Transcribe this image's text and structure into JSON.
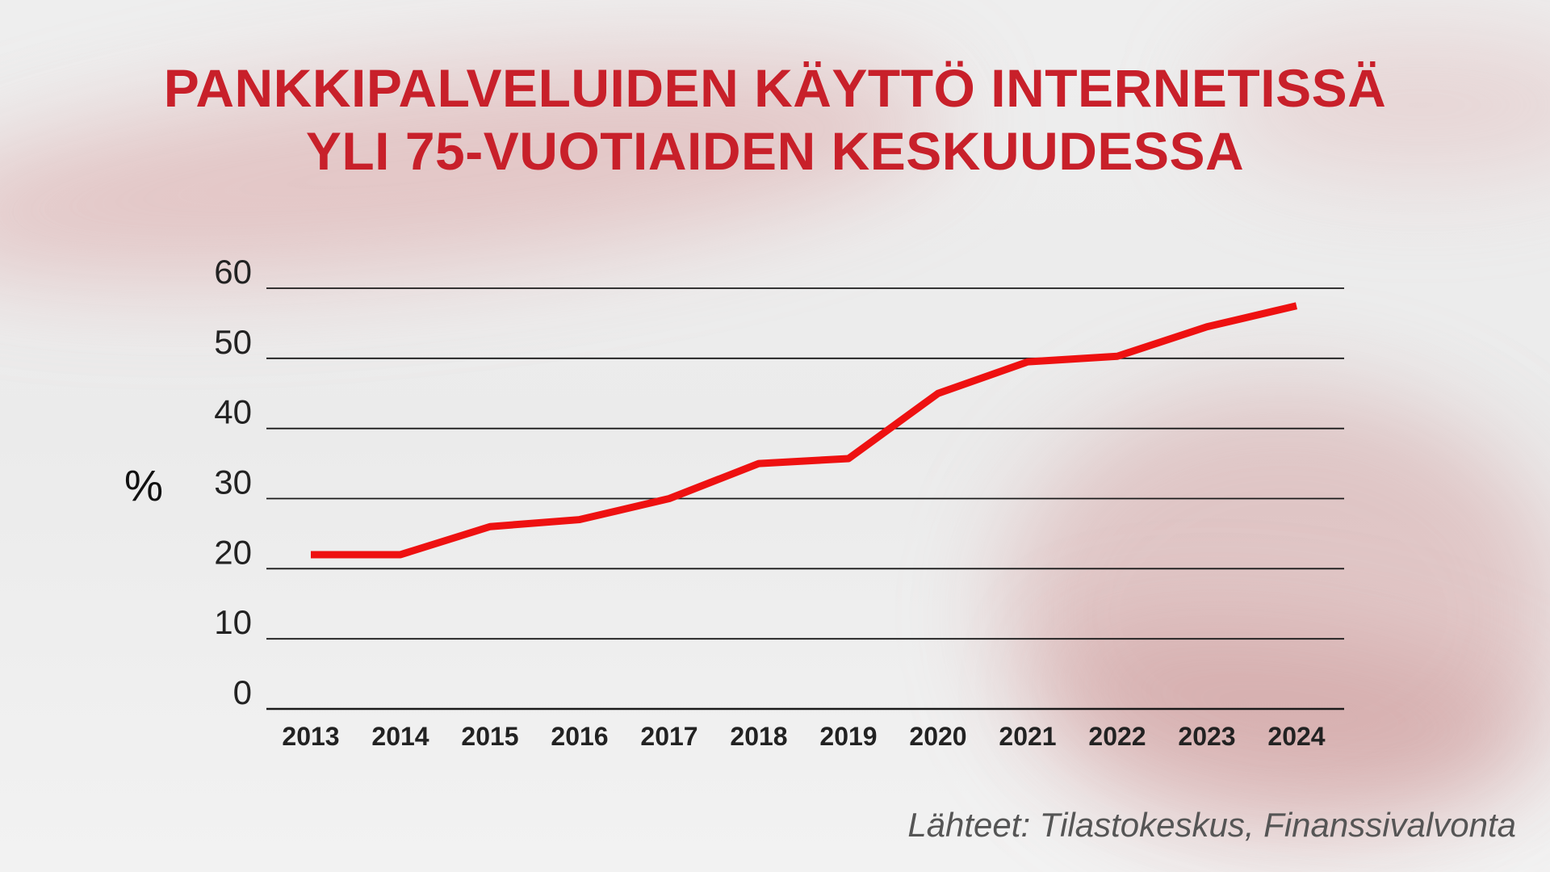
{
  "title": {
    "line1": "PANKKIPALVELUIDEN KÄYTTÖ INTERNETISSÄ",
    "line2": "YLI 75-VUOTIAIDEN KESKUUDESSA"
  },
  "source": "Lähteet: Tilastokeskus, Finanssivalvonta",
  "colors": {
    "title": "#c8202a",
    "line": "#ee1111",
    "grid": "#1a1a1a"
  },
  "chart_data": {
    "type": "line",
    "title": "PANKKIPALVELUIDEN KÄYTTÖ INTERNETISSÄ YLI 75-VUOTIAIDEN KESKUUDESSA",
    "xlabel": "",
    "ylabel": "%",
    "categories": [
      "2013",
      "2014",
      "2015",
      "2016",
      "2017",
      "2018",
      "2019",
      "2020",
      "2021",
      "2022",
      "2023",
      "2024"
    ],
    "series": [
      {
        "values": [
          22,
          22,
          26,
          27,
          30,
          35,
          35.7,
          45,
          49.5,
          50.3,
          54.5,
          57.5
        ]
      }
    ],
    "ylim": [
      0,
      60
    ],
    "yticks": [
      "0",
      "10",
      "20",
      "30",
      "40",
      "50",
      "60"
    ],
    "grid": true,
    "legend": "none"
  }
}
